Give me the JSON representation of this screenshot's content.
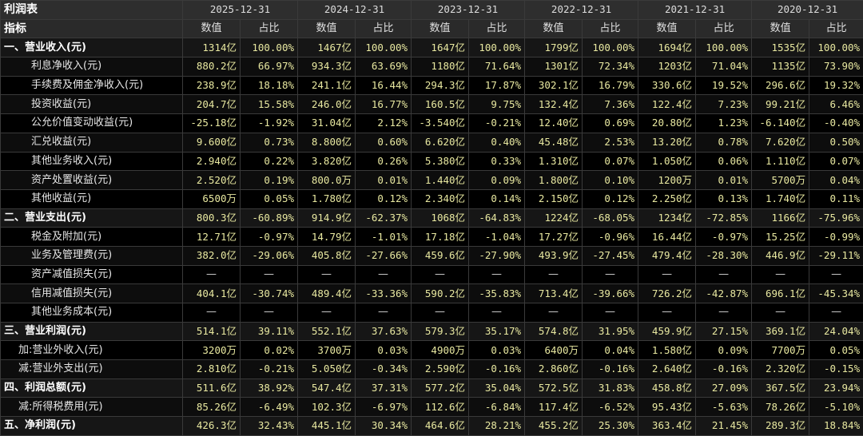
{
  "table_title": "利润表",
  "indicator_label": "指标",
  "value_label": "数值",
  "ratio_label": "占比",
  "years": [
    "2025-12-31",
    "2024-12-31",
    "2023-12-31",
    "2022-12-31",
    "2021-12-31",
    "2020-12-31"
  ],
  "rows": [
    {
      "label": "一、营业收入(元)",
      "section": true,
      "cells": [
        "1314亿",
        "100.00%",
        "1467亿",
        "100.00%",
        "1647亿",
        "100.00%",
        "1799亿",
        "100.00%",
        "1694亿",
        "100.00%",
        "1535亿",
        "100.00%"
      ]
    },
    {
      "label": "利息净收入(元)",
      "section": false,
      "cells": [
        "880.2亿",
        "66.97%",
        "934.3亿",
        "63.69%",
        "1180亿",
        "71.64%",
        "1301亿",
        "72.34%",
        "1203亿",
        "71.04%",
        "1135亿",
        "73.90%"
      ]
    },
    {
      "label": "手续费及佣金净收入(元)",
      "section": false,
      "cells": [
        "238.9亿",
        "18.18%",
        "241.1亿",
        "16.44%",
        "294.3亿",
        "17.87%",
        "302.1亿",
        "16.79%",
        "330.6亿",
        "19.52%",
        "296.6亿",
        "19.32%"
      ]
    },
    {
      "label": "投资收益(元)",
      "section": false,
      "cells": [
        "204.7亿",
        "15.58%",
        "246.0亿",
        "16.77%",
        "160.5亿",
        "9.75%",
        "132.4亿",
        "7.36%",
        "122.4亿",
        "7.23%",
        "99.21亿",
        "6.46%"
      ]
    },
    {
      "label": "公允价值变动收益(元)",
      "section": false,
      "cells": [
        "-25.18亿",
        "-1.92%",
        "31.04亿",
        "2.12%",
        "-3.540亿",
        "-0.21%",
        "12.40亿",
        "0.69%",
        "20.80亿",
        "1.23%",
        "-6.140亿",
        "-0.40%"
      ]
    },
    {
      "label": "汇兑收益(元)",
      "section": false,
      "cells": [
        "9.600亿",
        "0.73%",
        "8.800亿",
        "0.60%",
        "6.620亿",
        "0.40%",
        "45.48亿",
        "2.53%",
        "13.20亿",
        "0.78%",
        "7.620亿",
        "0.50%"
      ]
    },
    {
      "label": "其他业务收入(元)",
      "section": false,
      "cells": [
        "2.940亿",
        "0.22%",
        "3.820亿",
        "0.26%",
        "5.380亿",
        "0.33%",
        "1.310亿",
        "0.07%",
        "1.050亿",
        "0.06%",
        "1.110亿",
        "0.07%"
      ]
    },
    {
      "label": "资产处置收益(元)",
      "section": false,
      "cells": [
        "2.520亿",
        "0.19%",
        "800.0万",
        "0.01%",
        "1.440亿",
        "0.09%",
        "1.800亿",
        "0.10%",
        "1200万",
        "0.01%",
        "5700万",
        "0.04%"
      ]
    },
    {
      "label": "其他收益(元)",
      "section": false,
      "cells": [
        "6500万",
        "0.05%",
        "1.780亿",
        "0.12%",
        "2.340亿",
        "0.14%",
        "2.150亿",
        "0.12%",
        "2.250亿",
        "0.13%",
        "1.740亿",
        "0.11%"
      ]
    },
    {
      "label": "二、营业支出(元)",
      "section": true,
      "cells": [
        "800.3亿",
        "-60.89%",
        "914.9亿",
        "-62.37%",
        "1068亿",
        "-64.83%",
        "1224亿",
        "-68.05%",
        "1234亿",
        "-72.85%",
        "1166亿",
        "-75.96%"
      ]
    },
    {
      "label": "税金及附加(元)",
      "section": false,
      "cells": [
        "12.71亿",
        "-0.97%",
        "14.79亿",
        "-1.01%",
        "17.18亿",
        "-1.04%",
        "17.27亿",
        "-0.96%",
        "16.44亿",
        "-0.97%",
        "15.25亿",
        "-0.99%"
      ]
    },
    {
      "label": "业务及管理费(元)",
      "section": false,
      "cells": [
        "382.0亿",
        "-29.06%",
        "405.8亿",
        "-27.66%",
        "459.6亿",
        "-27.90%",
        "493.9亿",
        "-27.45%",
        "479.4亿",
        "-28.30%",
        "446.9亿",
        "-29.11%"
      ]
    },
    {
      "label": "资产减值损失(元)",
      "section": false,
      "cells": [
        "—",
        "—",
        "—",
        "—",
        "—",
        "—",
        "—",
        "—",
        "—",
        "—",
        "—",
        "—"
      ]
    },
    {
      "label": "信用减值损失(元)",
      "section": false,
      "cells": [
        "404.1亿",
        "-30.74%",
        "489.4亿",
        "-33.36%",
        "590.2亿",
        "-35.83%",
        "713.4亿",
        "-39.66%",
        "726.2亿",
        "-42.87%",
        "696.1亿",
        "-45.34%"
      ]
    },
    {
      "label": "其他业务成本(元)",
      "section": false,
      "cells": [
        "—",
        "—",
        "—",
        "—",
        "—",
        "—",
        "—",
        "—",
        "—",
        "—",
        "—",
        "—"
      ]
    },
    {
      "label": "三、营业利润(元)",
      "section": true,
      "cells": [
        "514.1亿",
        "39.11%",
        "552.1亿",
        "37.63%",
        "579.3亿",
        "35.17%",
        "574.8亿",
        "31.95%",
        "459.9亿",
        "27.15%",
        "369.1亿",
        "24.04%"
      ]
    },
    {
      "label": "加:营业外收入(元)",
      "section": false,
      "sublead": true,
      "cells": [
        "3200万",
        "0.02%",
        "3700万",
        "0.03%",
        "4900万",
        "0.03%",
        "6400万",
        "0.04%",
        "1.580亿",
        "0.09%",
        "7700万",
        "0.05%"
      ]
    },
    {
      "label": "减:营业外支出(元)",
      "section": false,
      "sublead": true,
      "cells": [
        "2.810亿",
        "-0.21%",
        "5.050亿",
        "-0.34%",
        "2.590亿",
        "-0.16%",
        "2.860亿",
        "-0.16%",
        "2.640亿",
        "-0.16%",
        "2.320亿",
        "-0.15%"
      ]
    },
    {
      "label": "四、利润总额(元)",
      "section": true,
      "cells": [
        "511.6亿",
        "38.92%",
        "547.4亿",
        "37.31%",
        "577.2亿",
        "35.04%",
        "572.5亿",
        "31.83%",
        "458.8亿",
        "27.09%",
        "367.5亿",
        "23.94%"
      ]
    },
    {
      "label": "减:所得税费用(元)",
      "section": false,
      "sublead": true,
      "cells": [
        "85.26亿",
        "-6.49%",
        "102.3亿",
        "-6.97%",
        "112.6亿",
        "-6.84%",
        "117.4亿",
        "-6.52%",
        "95.43亿",
        "-5.63%",
        "78.26亿",
        "-5.10%"
      ]
    },
    {
      "label": "五、净利润(元)",
      "section": true,
      "cells": [
        "426.3亿",
        "32.43%",
        "445.1亿",
        "30.34%",
        "464.6亿",
        "28.21%",
        "455.2亿",
        "25.30%",
        "363.4亿",
        "21.45%",
        "289.3亿",
        "18.84%"
      ]
    }
  ]
}
